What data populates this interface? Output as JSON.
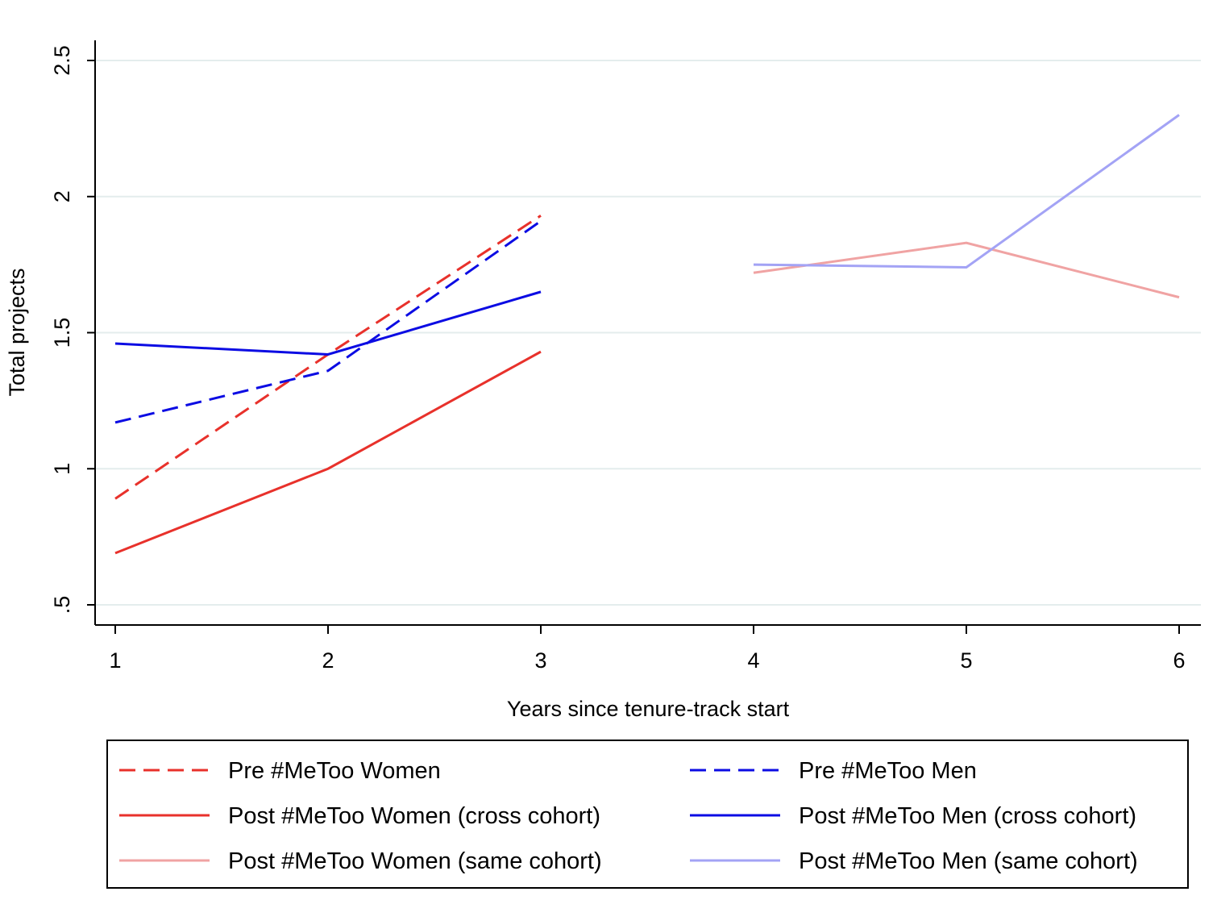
{
  "chart_data": {
    "type": "line",
    "title": "",
    "xlabel": "Years since tenure-track start",
    "ylabel": "Total projects",
    "xlim": [
      1,
      6
    ],
    "ylim": [
      0.5,
      2.5
    ],
    "x_ticks": [
      "1",
      "2",
      "3",
      "4",
      "5",
      "6"
    ],
    "y_ticks": [
      {
        "value": 0.5,
        "label": ".5"
      },
      {
        "value": 1,
        "label": "1"
      },
      {
        "value": 1.5,
        "label": "1.5"
      },
      {
        "value": 2,
        "label": "2"
      },
      {
        "value": 2.5,
        "label": "2.5"
      }
    ],
    "grid": "horizontal",
    "legend_position": "bottom",
    "series": [
      {
        "name": "Pre #MeToo Women",
        "color": "#e8312b",
        "style": "dashed",
        "points": [
          {
            "x": 1,
            "y": 0.89
          },
          {
            "x": 2,
            "y": 1.42
          },
          {
            "x": 3,
            "y": 1.93
          }
        ]
      },
      {
        "name": "Pre #MeToo Men",
        "color": "#0c0ce3",
        "style": "dashed",
        "points": [
          {
            "x": 1,
            "y": 1.17
          },
          {
            "x": 2,
            "y": 1.36
          },
          {
            "x": 3,
            "y": 1.91
          }
        ]
      },
      {
        "name": "Post #MeToo Women (cross cohort)",
        "color": "#e8312b",
        "style": "solid",
        "points": [
          {
            "x": 1,
            "y": 0.69
          },
          {
            "x": 2,
            "y": 1.0
          },
          {
            "x": 3,
            "y": 1.43
          }
        ]
      },
      {
        "name": "Post #MeToo Men (cross cohort)",
        "color": "#0c0ce3",
        "style": "solid",
        "points": [
          {
            "x": 1,
            "y": 1.46
          },
          {
            "x": 2,
            "y": 1.42
          },
          {
            "x": 3,
            "y": 1.65
          }
        ]
      },
      {
        "name": "Post #MeToo Women (same cohort)",
        "color": "#f0a3a3",
        "style": "solid",
        "points": [
          {
            "x": 4,
            "y": 1.72
          },
          {
            "x": 5,
            "y": 1.83
          },
          {
            "x": 6,
            "y": 1.63
          }
        ]
      },
      {
        "name": "Post #MeToo Men (same cohort)",
        "color": "#a3a3f5",
        "style": "solid",
        "points": [
          {
            "x": 4,
            "y": 1.75
          },
          {
            "x": 5,
            "y": 1.74
          },
          {
            "x": 6,
            "y": 2.3
          }
        ]
      }
    ]
  }
}
